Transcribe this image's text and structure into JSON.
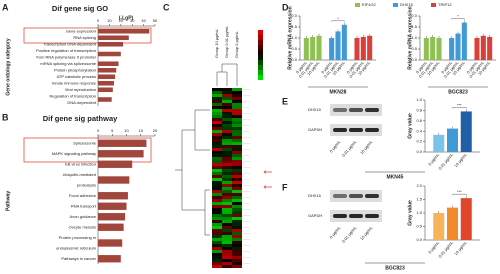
{
  "chart_data": [
    {
      "type": "hbar",
      "panel": "A",
      "title": "Dif gene sig GO",
      "xlabel": "(-LgP)",
      "ylabel": "Gene ontology category",
      "color": "#a0463c",
      "categories": [
        "Gene expression",
        "RNA splicing",
        "Transcription DNA-dependent",
        "Positive regulation of transcription",
        "from RNA polymerase II promoter",
        "mRNA splicing via spliceosome",
        "Protein phosphorylation",
        "ATP catabolic process",
        "Innate immune response",
        "Viral reproduction",
        "Regulation of transcription",
        "DNA-dependent"
      ],
      "values": [
        45,
        27,
        22,
        20,
        null,
        18,
        16,
        15,
        14,
        13,
        12,
        null
      ],
      "xlim": [
        0,
        50
      ],
      "xticks": [
        0,
        10,
        20,
        30,
        40,
        50
      ]
    },
    {
      "type": "hbar",
      "panel": "B",
      "title": "Dif gene sig pathway",
      "ylabel": "Pathway",
      "color": "#a0463c",
      "categories": [
        "Spliceosome",
        "MAPK signaling pathway",
        "EB virus infection",
        "Ubiquitin-mediated",
        "proteolysis",
        "Focal adhesion",
        "RNA transport",
        "Axon guidance",
        "Oocyte meiosis",
        "Protein processing in",
        "endoplasmic reticulum",
        "Pathways in cancer"
      ],
      "values": [
        17,
        16,
        12,
        11,
        null,
        10.5,
        10,
        9.5,
        9,
        8.5,
        null,
        8
      ],
      "xlim": [
        0,
        20
      ],
      "xticks": [
        0,
        5,
        10,
        15,
        20
      ]
    },
    {
      "type": "bar",
      "panel": "D",
      "ylabel": "Relative mRNA expression",
      "xlabel": "MKN28",
      "legend": "top",
      "annotation": "*",
      "categories": [
        "0 μg/mL",
        "0.01 μg/mL",
        "10 μg/mL"
      ],
      "series": [
        {
          "name": "EIF4G2",
          "color": "#8fc152",
          "values": [
            1,
            1.05,
            1.1
          ]
        },
        {
          "name": "DHX15",
          "color": "#3f9ad6",
          "values": [
            1,
            1.3,
            1.6
          ]
        },
        {
          "name": "TRIP12",
          "color": "#d9403a",
          "values": [
            1,
            1.05,
            1.1
          ]
        }
      ],
      "ylim": [
        0,
        2
      ],
      "yticks": [
        {
          "value": 0,
          "label": "0.0"
        },
        {
          "value": 0.5,
          "label": "0.5"
        },
        {
          "value": 1,
          "label": "1.0"
        },
        {
          "value": 1.5,
          "label": "1.5"
        },
        {
          "value": 2,
          "label": "2.0"
        }
      ]
    },
    {
      "type": "bar",
      "ylabel": "Relative mRNA expression",
      "xlabel": "BGC823",
      "annotation": "*",
      "categories": [
        "0 μg/mL",
        "0.01 μg/mL",
        "10 μg/mL"
      ],
      "series": [
        {
          "name": "EIF4G2",
          "color": "#8fc152",
          "values": [
            1,
            1.05,
            1.0
          ]
        },
        {
          "name": "DHX15",
          "color": "#3f9ad6",
          "values": [
            1,
            1.2,
            1.7
          ]
        },
        {
          "name": "TRIP12",
          "color": "#d9403a",
          "values": [
            1,
            1.1,
            1.05
          ]
        }
      ],
      "ylim": [
        0,
        2
      ],
      "yticks": [
        {
          "value": 0,
          "label": "0.0"
        },
        {
          "value": 0.5,
          "label": "0.5"
        },
        {
          "value": 1,
          "label": "1.0"
        },
        {
          "value": 1.5,
          "label": "1.5"
        },
        {
          "value": 2,
          "label": "2.0"
        }
      ]
    },
    {
      "type": "bar",
      "panel": "E",
      "ylabel": "Gray value",
      "xlabel": "MKN45",
      "annotation": "***",
      "categories": [
        "0 μg/mL",
        "0.01 μg/mL",
        "10 μg/mL"
      ],
      "values": [
        0.33,
        0.45,
        0.78
      ],
      "colors": [
        "#7cc3ea",
        "#3f9ad6",
        "#1f5fa8"
      ],
      "ylim": [
        0,
        1
      ],
      "yticks": [
        {
          "value": 0,
          "label": "0.0"
        },
        {
          "value": 0.2,
          "label": "0.2"
        },
        {
          "value": 0.4,
          "label": "0.4"
        },
        {
          "value": 0.6,
          "label": "0.6"
        },
        {
          "value": 0.8,
          "label": "0.8"
        },
        {
          "value": 1,
          "label": "1.0"
        }
      ]
    },
    {
      "type": "bar",
      "panel": "F",
      "ylabel": "Gray value",
      "xlabel": "BGC823",
      "annotation": "***",
      "categories": [
        "0 μg/mL",
        "0.01 μg/mL",
        "10 μg/mL"
      ],
      "values": [
        1.0,
        1.2,
        1.55
      ],
      "colors": [
        "#f7b45a",
        "#f08a2c",
        "#e0462a"
      ],
      "ylim": [
        0,
        2
      ],
      "yticks": [
        {
          "value": 0,
          "label": "0.0"
        },
        {
          "value": 0.5,
          "label": "0.5"
        },
        {
          "value": 1,
          "label": "1.0"
        },
        {
          "value": 1.5,
          "label": "1.5"
        },
        {
          "value": 2,
          "label": "2.0"
        }
      ]
    }
  ],
  "heatmap": {
    "panel": "C",
    "columns": [
      "Group 10 μg/mL",
      "Group 0.01 μg/mL",
      "Group 0 μg/mL"
    ]
  },
  "blots": [
    {
      "rows": [
        "DHX15",
        "GAPDH"
      ],
      "lanes": [
        "0 μg/mL",
        "0.01 μg/mL",
        "10 μg/mL"
      ]
    },
    {
      "rows": [
        "DHX15",
        "GAPDH"
      ],
      "lanes": [
        "0 μg/mL",
        "0.01 μg/mL",
        "10 μg/mL"
      ]
    }
  ]
}
